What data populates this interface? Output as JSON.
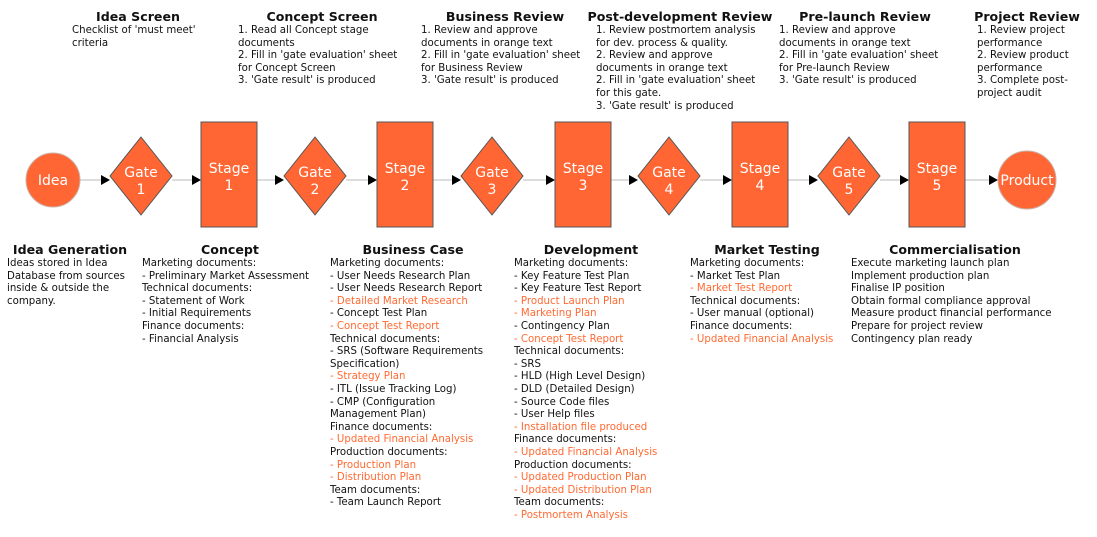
{
  "colors": {
    "shape_fill": "#ff6633",
    "shape_border": "#555555",
    "highlight_text": "#ff6a33",
    "connector": "#bbbbbb",
    "arrowhead": "#000000"
  },
  "gates": [
    {
      "title": "Idea Screen",
      "lines": [
        "Checklist of 'must meet'",
        "criteria"
      ]
    },
    {
      "title": "Concept Screen",
      "lines": [
        "1. Read all Concept stage",
        "documents",
        "2. Fill in 'gate evaluation' sheet",
        "for Concept Screen",
        "3. 'Gate result' is produced"
      ]
    },
    {
      "title": "Business Review",
      "lines": [
        "1. Review and approve",
        "documents in orange text",
        "2. Fill in 'gate evaluation' sheet",
        "for Business Review",
        "3. 'Gate result' is produced"
      ]
    },
    {
      "title": "Post-development Review",
      "lines": [
        "1. Review postmortem analysis",
        "for dev. process & quality.",
        "2. Review and approve",
        "documents in orange text",
        "2. Fill in 'gate evaluation' sheet",
        "for this gate.",
        "3. 'Gate result' is produced"
      ]
    },
    {
      "title": "Pre-launch Review",
      "lines": [
        "1. Review and approve",
        "documents in orange text",
        "2. Fill in 'gate evaluation' sheet",
        "for Pre-launch Review",
        "3. 'Gate result' is produced"
      ]
    },
    {
      "title": "Project Review",
      "lines": [
        "1. Review project",
        "performance",
        "2. Review product",
        "performance",
        "3. Complete post-",
        "project audit"
      ]
    }
  ],
  "flow": [
    {
      "type": "circle",
      "label": [
        "Idea"
      ]
    },
    {
      "type": "diamond",
      "label": [
        "Gate",
        "1"
      ]
    },
    {
      "type": "rect",
      "label": [
        "Stage",
        "1"
      ]
    },
    {
      "type": "diamond",
      "label": [
        "Gate",
        "2"
      ]
    },
    {
      "type": "rect",
      "label": [
        "Stage",
        "2"
      ]
    },
    {
      "type": "diamond",
      "label": [
        "Gate",
        "3"
      ]
    },
    {
      "type": "rect",
      "label": [
        "Stage",
        "3"
      ]
    },
    {
      "type": "diamond",
      "label": [
        "Gate",
        "4"
      ]
    },
    {
      "type": "rect",
      "label": [
        "Stage",
        "4"
      ]
    },
    {
      "type": "diamond",
      "label": [
        "Gate",
        "5"
      ]
    },
    {
      "type": "rect",
      "label": [
        "Stage",
        "5"
      ]
    },
    {
      "type": "circle",
      "label": [
        "Product"
      ]
    }
  ],
  "stages": [
    {
      "title": "Idea Generation",
      "lines": [
        {
          "t": "Ideas stored in Idea",
          "o": false
        },
        {
          "t": "Database from sources",
          "o": false
        },
        {
          "t": "inside & outside the",
          "o": false
        },
        {
          "t": "company.",
          "o": false
        }
      ]
    },
    {
      "title": "Concept",
      "lines": [
        {
          "t": "Marketing documents:",
          "o": false
        },
        {
          "t": "- Preliminary Market Assessment",
          "o": false
        },
        {
          "t": "Technical documents:",
          "o": false
        },
        {
          "t": "- Statement of Work",
          "o": false
        },
        {
          "t": "- Initial Requirements",
          "o": false
        },
        {
          "t": "Finance documents:",
          "o": false
        },
        {
          "t": "- Financial Analysis",
          "o": false
        }
      ]
    },
    {
      "title": "Business Case",
      "lines": [
        {
          "t": "Marketing documents:",
          "o": false
        },
        {
          "t": "- User Needs Research Plan",
          "o": false
        },
        {
          "t": "- User Needs Research Report",
          "o": false
        },
        {
          "t": "- Detailed Market Research",
          "o": true
        },
        {
          "t": "- Concept Test Plan",
          "o": false
        },
        {
          "t": "- Concept Test Report",
          "o": true
        },
        {
          "t": "Technical documents:",
          "o": false
        },
        {
          "t": "- SRS (Software Requirements",
          "o": false
        },
        {
          "t": "Specification)",
          "o": false
        },
        {
          "t": "- Strategy Plan",
          "o": true
        },
        {
          "t": "- ITL (Issue Tracking Log)",
          "o": false
        },
        {
          "t": "- CMP (Configuration",
          "o": false
        },
        {
          "t": "Management Plan)",
          "o": false
        },
        {
          "t": "Finance documents:",
          "o": false
        },
        {
          "t": "- Updated Financial Analysis",
          "o": true
        },
        {
          "t": "Production documents:",
          "o": false
        },
        {
          "t": "- Production Plan",
          "o": true
        },
        {
          "t": "- Distribution Plan",
          "o": true
        },
        {
          "t": "Team documents:",
          "o": false
        },
        {
          "t": "- Team Launch Report",
          "o": false
        }
      ]
    },
    {
      "title": "Development",
      "lines": [
        {
          "t": "Marketing documents:",
          "o": false
        },
        {
          "t": "- Key Feature Test Plan",
          "o": false
        },
        {
          "t": "- Key Feature Test Report",
          "o": false
        },
        {
          "t": "- Product Launch Plan",
          "o": true
        },
        {
          "t": "- Marketing Plan",
          "o": true
        },
        {
          "t": "- Contingency Plan",
          "o": false
        },
        {
          "t": "- Concept Test Report",
          "o": true
        },
        {
          "t": "Technical documents:",
          "o": false
        },
        {
          "t": "- SRS",
          "o": false
        },
        {
          "t": "- HLD (High Level Design)",
          "o": false
        },
        {
          "t": "- DLD (Detailed Design)",
          "o": false
        },
        {
          "t": "- Source Code files",
          "o": false
        },
        {
          "t": "- User Help files",
          "o": false
        },
        {
          "t": "- Installation file produced",
          "o": true
        },
        {
          "t": "Finance documents:",
          "o": false
        },
        {
          "t": "- Updated Financial Analysis",
          "o": true
        },
        {
          "t": "Production documents:",
          "o": false
        },
        {
          "t": "- Updated Production Plan",
          "o": true
        },
        {
          "t": "- Updated Distribution Plan",
          "o": true
        },
        {
          "t": "Team documents:",
          "o": false
        },
        {
          "t": "- Postmortem Analysis",
          "o": true
        }
      ]
    },
    {
      "title": "Market Testing",
      "lines": [
        {
          "t": "Marketing documents:",
          "o": false
        },
        {
          "t": "- Market Test Plan",
          "o": false
        },
        {
          "t": "- Market Test Report",
          "o": true
        },
        {
          "t": "Technical documents:",
          "o": false
        },
        {
          "t": "- User manual (optional)",
          "o": false
        },
        {
          "t": "Finance documents:",
          "o": false
        },
        {
          "t": "- Updated Financial Analysis",
          "o": true
        }
      ]
    },
    {
      "title": "Commercialisation",
      "lines": [
        {
          "t": "Execute marketing launch plan",
          "o": false
        },
        {
          "t": "Implement production plan",
          "o": false
        },
        {
          "t": "Finalise IP position",
          "o": false
        },
        {
          "t": "Obtain formal compliance approval",
          "o": false
        },
        {
          "t": "Measure product financial performance",
          "o": false
        },
        {
          "t": "Prepare for project review",
          "o": false
        },
        {
          "t": "Contingency plan ready",
          "o": false
        }
      ]
    }
  ]
}
